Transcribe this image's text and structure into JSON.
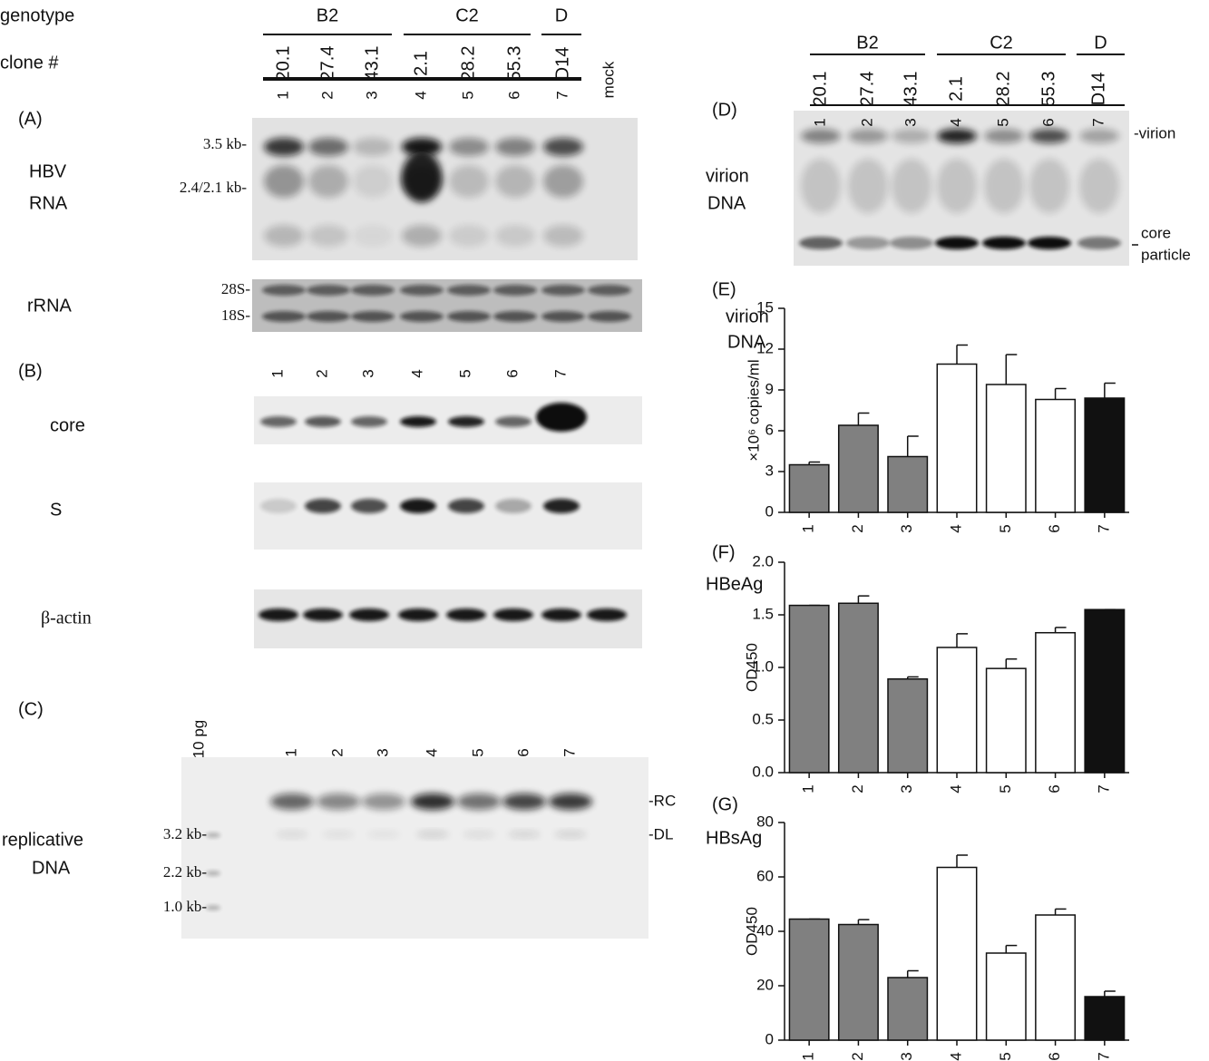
{
  "header": {
    "genotype_label": "genotype",
    "clone_label": "clone #",
    "genotypes": [
      "B2",
      "C2",
      "D"
    ],
    "clones": [
      "20.1",
      "27.4",
      "43.1",
      "2.1",
      "28.2",
      "55.3",
      "D14"
    ],
    "lanes": [
      "1",
      "2",
      "3",
      "4",
      "5",
      "6",
      "7"
    ],
    "mock": "mock"
  },
  "panel_a": {
    "letter": "(A)",
    "label": [
      "HBV",
      "RNA"
    ],
    "markers": [
      "3.5 kb-",
      "2.4/2.1 kb-"
    ],
    "rrna_label": "rRNA",
    "rrna_markers": [
      "28S-",
      "18S-"
    ]
  },
  "panel_b": {
    "letter": "(B)",
    "lanes": [
      "1",
      "2",
      "3",
      "4",
      "5",
      "6",
      "7"
    ],
    "rows": [
      "core",
      "S",
      "β-actin"
    ]
  },
  "panel_c": {
    "letter": "(C)",
    "ladder": "10 pg",
    "lanes": [
      "1",
      "2",
      "3",
      "4",
      "5",
      "6",
      "7"
    ],
    "label": [
      "replicative",
      "DNA"
    ],
    "markers": [
      "3.2 kb-",
      "2.2 kb-",
      "1.0 kb-"
    ],
    "forms": [
      "-RC",
      "-DL"
    ]
  },
  "panel_d": {
    "letter": "(D)",
    "genotypes": [
      "B2",
      "C2",
      "D"
    ],
    "clones": [
      "20.1",
      "27.4",
      "43.1",
      "2.1",
      "28.2",
      "55.3",
      "D14"
    ],
    "lanes": [
      "1",
      "2",
      "3",
      "4",
      "5",
      "6",
      "7"
    ],
    "label": [
      "virion",
      "DNA"
    ],
    "forms": [
      "-virion",
      "core",
      "particle"
    ]
  },
  "chart_data": [
    {
      "type": "bar",
      "letter": "(E)",
      "title": [
        "virion",
        "DNA"
      ],
      "y_label": "×10⁶ copies/ml",
      "categories": [
        "1",
        "2",
        "3",
        "4",
        "5",
        "6",
        "7"
      ],
      "values": [
        3.5,
        6.4,
        4.1,
        10.9,
        9.4,
        8.3,
        8.4
      ],
      "errors": [
        0.2,
        0.9,
        1.5,
        1.4,
        2.2,
        0.8,
        1.1
      ],
      "colors": [
        "#808080",
        "#808080",
        "#808080",
        "#ffffff",
        "#ffffff",
        "#ffffff",
        "#111111"
      ],
      "ylim": [
        0,
        15
      ],
      "yticks": [
        0,
        3,
        6,
        9,
        12,
        15
      ]
    },
    {
      "type": "bar",
      "letter": "(F)",
      "title": [
        "HBeAg"
      ],
      "y_label": "OD450",
      "categories": [
        "1",
        "2",
        "3",
        "4",
        "5",
        "6",
        "7"
      ],
      "values": [
        1.59,
        1.61,
        0.89,
        1.19,
        0.99,
        1.33,
        1.55
      ],
      "errors": [
        0,
        0.07,
        0.02,
        0.13,
        0.09,
        0.05,
        0
      ],
      "colors": [
        "#808080",
        "#808080",
        "#808080",
        "#ffffff",
        "#ffffff",
        "#ffffff",
        "#111111"
      ],
      "ylim": [
        0,
        2
      ],
      "yticks": [
        {
          "value": 0,
          "label": "0.0"
        },
        {
          "value": 0.5,
          "label": "0.5"
        },
        {
          "value": 1,
          "label": "1.0"
        },
        {
          "value": 1.5,
          "label": "1.5"
        },
        {
          "value": 2,
          "label": "2.0"
        }
      ]
    },
    {
      "type": "bar",
      "letter": "(G)",
      "title": [
        "HBsAg"
      ],
      "y_label": "OD450",
      "categories": [
        "1",
        "2",
        "3",
        "4",
        "5",
        "6",
        "7"
      ],
      "values": [
        44.5,
        42.5,
        23,
        63.5,
        32,
        46,
        16
      ],
      "errors": [
        0,
        1.8,
        2.5,
        4.5,
        2.8,
        2.2,
        2
      ],
      "colors": [
        "#808080",
        "#808080",
        "#808080",
        "#ffffff",
        "#ffffff",
        "#ffffff",
        "#111111"
      ],
      "ylim": [
        0,
        80
      ],
      "yticks": [
        0,
        20,
        40,
        60,
        80
      ]
    }
  ]
}
